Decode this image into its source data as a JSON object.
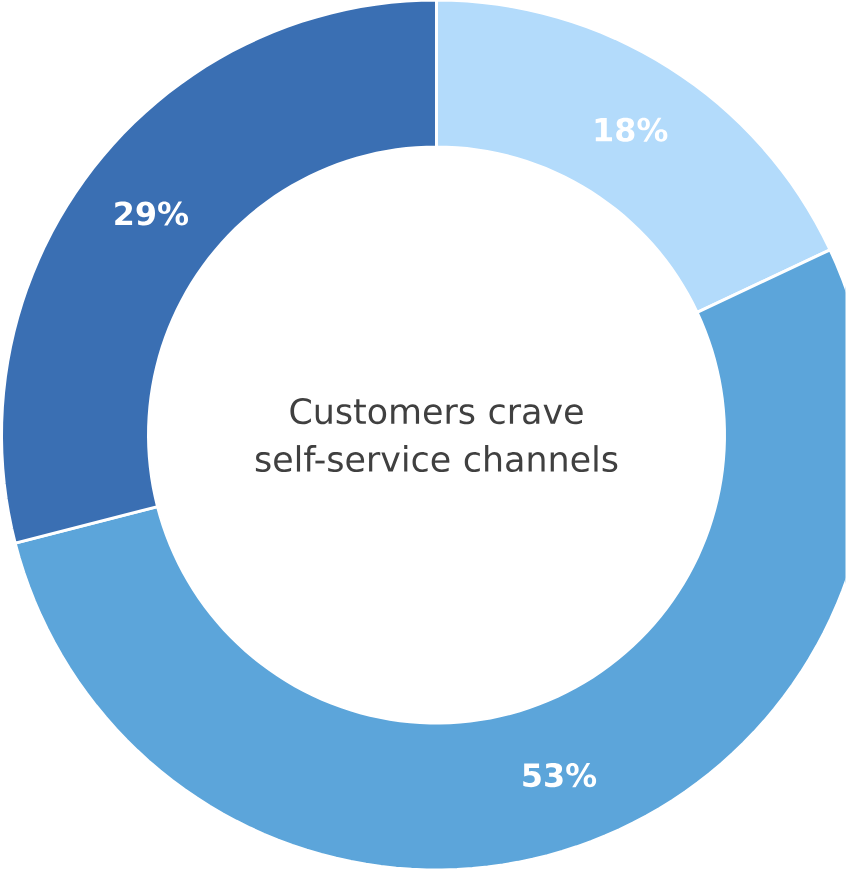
{
  "chart_data": {
    "type": "donut",
    "title": "Customers crave self-service channels",
    "categories": [
      null,
      null,
      null
    ],
    "values": [
      18,
      53,
      29
    ],
    "value_labels": [
      "18%",
      "53%",
      "29%"
    ],
    "colors": [
      "#b3dbfb",
      "#5ca5da",
      "#3a6fb3"
    ]
  }
}
